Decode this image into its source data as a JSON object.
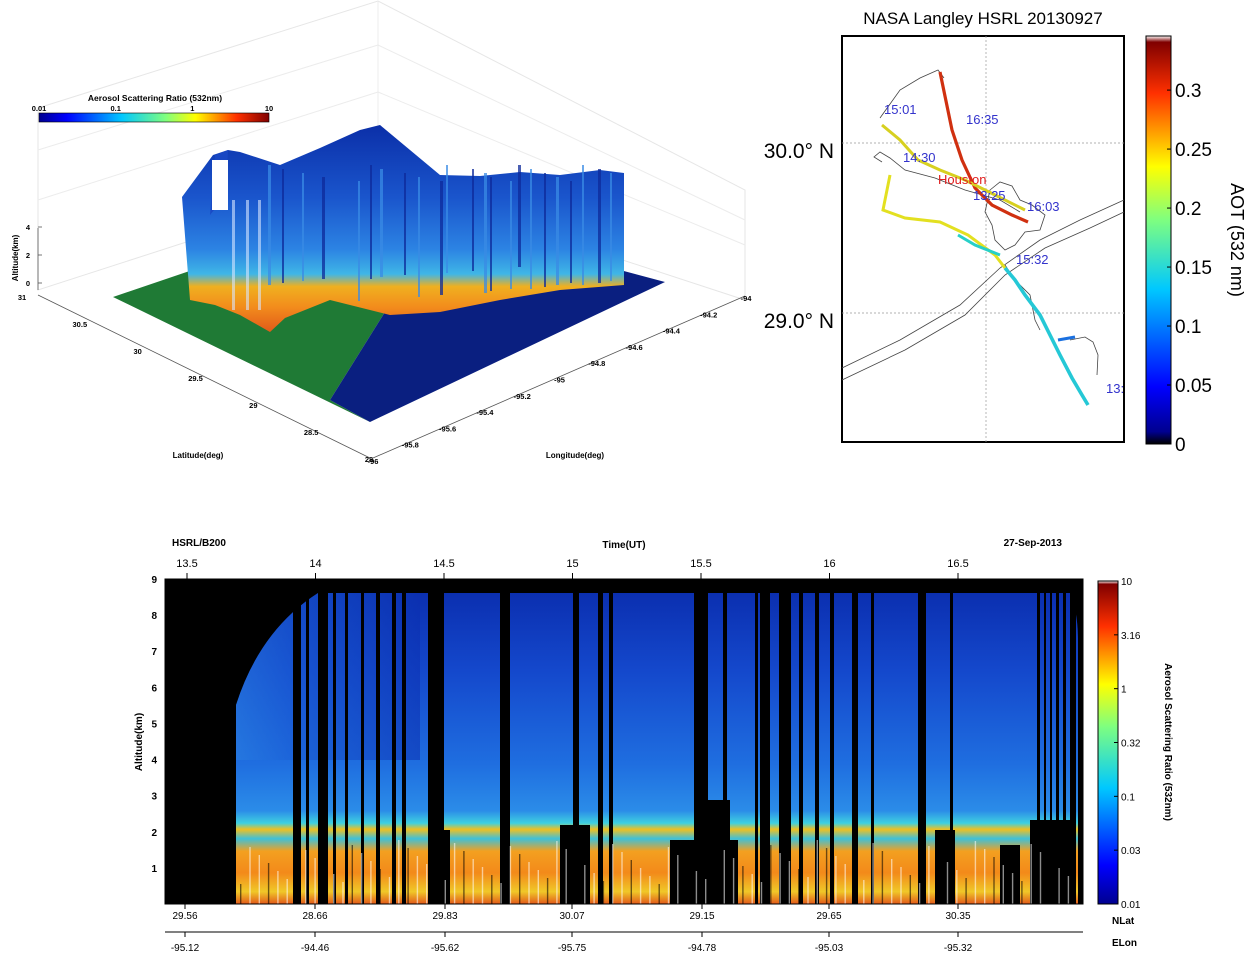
{
  "colors": {
    "land": "#1f7a35",
    "sea": "#0a1f80",
    "curtain_dark": "#0a2a9a",
    "curtain_mid": "#2f6fd8",
    "boundary_layer": "#f2a21b",
    "surface_red": "#e0471a",
    "flight_label": "#3333cc",
    "city_label": "#e02020"
  },
  "chart_data": [
    {
      "type": "heatmap",
      "kind": "3d-curtain",
      "colorbar": {
        "title": "Aerosol Scattering Ratio (532nm)",
        "ticks": [
          "0.01",
          "0.1",
          "1",
          "10"
        ],
        "scale": "log",
        "range": [
          0.01,
          10
        ]
      },
      "zlabel": "Altitude(km)",
      "zticks": [
        "0",
        "2",
        "4"
      ],
      "zlim": [
        0,
        4
      ],
      "ylabel": "Latitude(deg)",
      "yticks": [
        "31",
        "30.5",
        "30",
        "29.5",
        "29",
        "28.5",
        "28"
      ],
      "ylim": [
        28,
        31
      ],
      "xlabel": "Longitude(deg)",
      "xticks": [
        "-96",
        "-95.8",
        "-95.6",
        "-95.4",
        "-95.2",
        "-95",
        "-94.8",
        "-94.6",
        "-94.4",
        "-94.2",
        "-94"
      ],
      "xlim": [
        -96,
        -94
      ],
      "grid": true
    },
    {
      "type": "scatter",
      "kind": "flight-track-map",
      "title": "NASA Langley HSRL 20130927",
      "lat_labels": [
        "30.0° N",
        "29.0° N"
      ],
      "lat_values": [
        30.0,
        29.0
      ],
      "time_labels": [
        "15:01",
        "16:35",
        "14:30",
        "13:25",
        "16:03",
        "15:32",
        "13:"
      ],
      "city": "Houston",
      "colorbar": {
        "label": "AOT (532 nm)",
        "ticks": [
          "0",
          "0.05",
          "0.1",
          "0.15",
          "0.2",
          "0.25",
          "0.3"
        ],
        "tick_values": [
          0,
          0.05,
          0.1,
          0.15,
          0.2,
          0.25,
          0.3
        ],
        "range": [
          0,
          0.345
        ]
      },
      "grid": true
    },
    {
      "type": "heatmap",
      "kind": "time-altitude-curtain",
      "title_left": "HSRL/B200",
      "title_center": "Time(UT)",
      "title_right": "27-Sep-2013",
      "time_ticks": [
        "13.5",
        "14",
        "14.5",
        "15",
        "15.5",
        "16",
        "16.5"
      ],
      "time_values": [
        13.5,
        14,
        14.5,
        15,
        15.5,
        16,
        16.5
      ],
      "ylabel": "Altitude(km)",
      "yticks": [
        "1",
        "2",
        "3",
        "4",
        "5",
        "6",
        "7",
        "8",
        "9"
      ],
      "ylim": [
        0,
        9
      ],
      "lat_ticks": [
        "29.56",
        "28.66",
        "29.83",
        "30.07",
        "29.15",
        "29.65",
        "30.35"
      ],
      "lat_label": "NLat",
      "lon_ticks": [
        "-95.12",
        "-94.46",
        "-95.62",
        "-95.75",
        "-94.78",
        "-95.03",
        "-95.32"
      ],
      "lon_label": "ELon",
      "colorbar": {
        "label": "Aerosol Scattering Ratio (532nm)",
        "ticks": [
          "10",
          "3.16",
          "1",
          "0.32",
          "0.1",
          "0.03",
          "0.01"
        ],
        "scale": "log",
        "range": [
          0.01,
          10
        ]
      }
    }
  ]
}
